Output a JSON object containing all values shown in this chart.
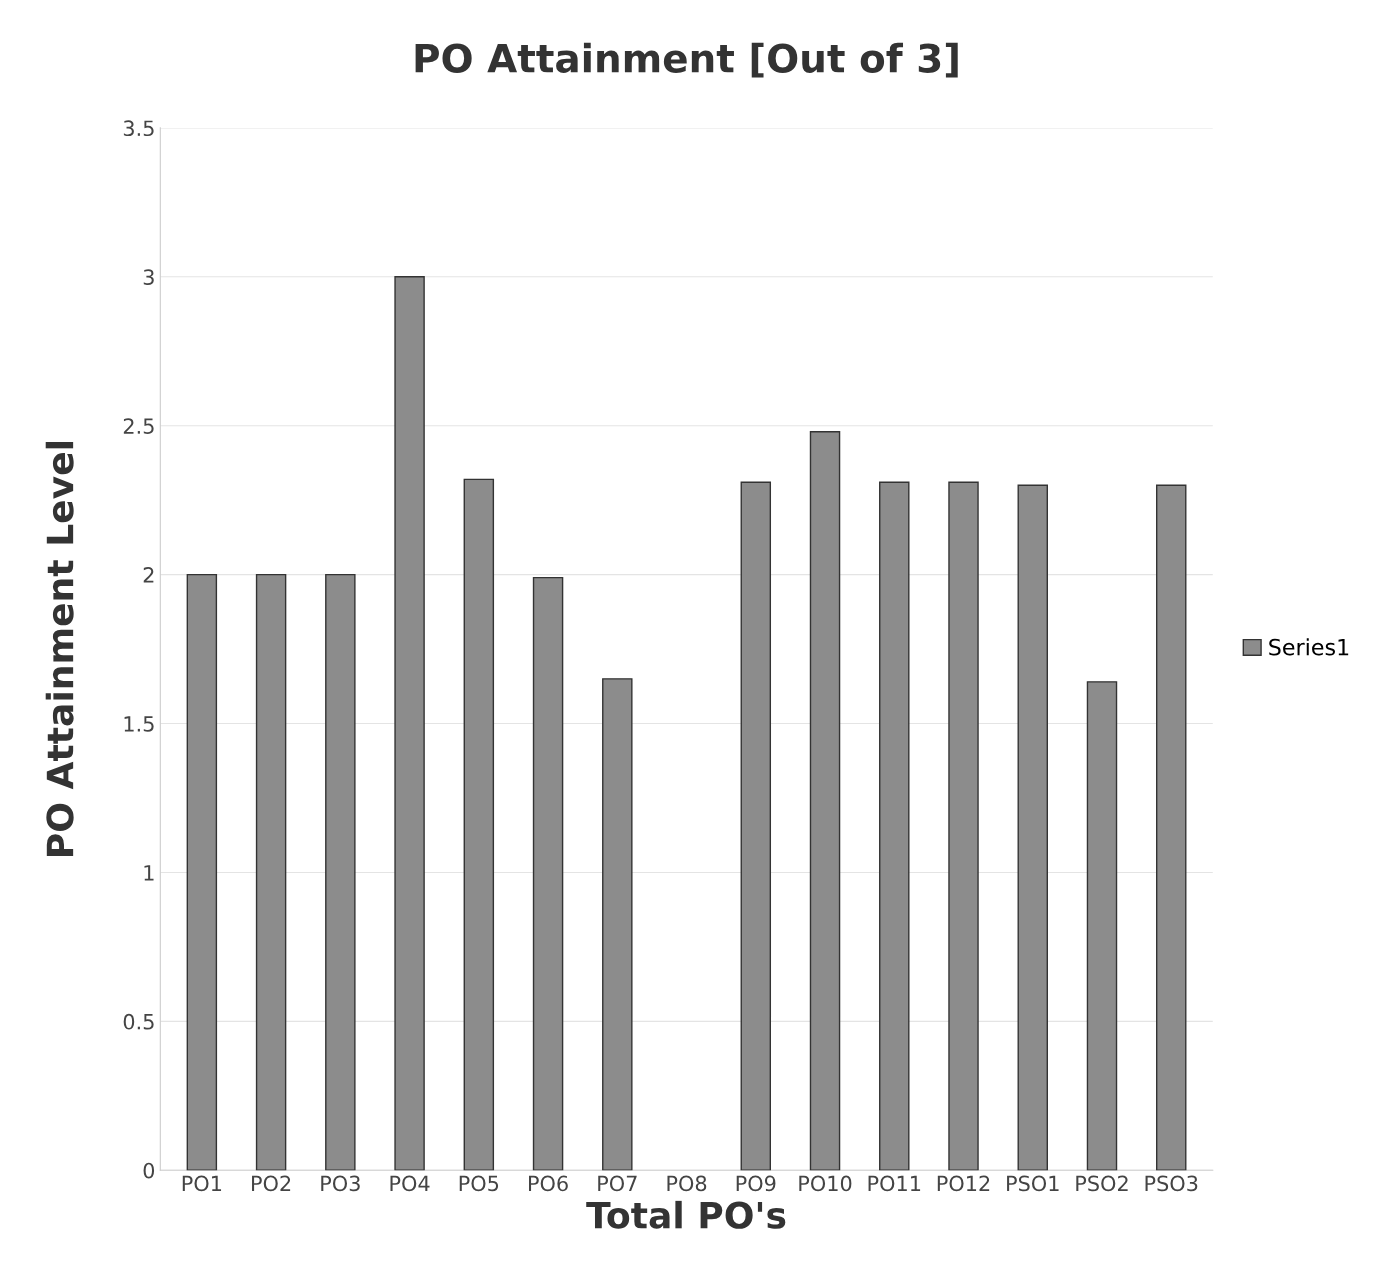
{
  "chart_data": {
    "type": "bar",
    "title": "PO Attainment [Out of 3]",
    "xlabel": "Total PO's",
    "ylabel": "PO Attainment Level",
    "categories": [
      "PO1",
      "PO2",
      "PO3",
      "PO4",
      "PO5",
      "PO6",
      "PO7",
      "PO8",
      "PO9",
      "PO10",
      "PO11",
      "PO12",
      "PSO1",
      "PSO2",
      "PSO3"
    ],
    "series": [
      {
        "name": "Series1",
        "color": "#8c8c8c",
        "values": [
          2.0,
          2.0,
          2.0,
          3.0,
          2.32,
          1.99,
          1.65,
          null,
          2.31,
          2.48,
          2.31,
          2.31,
          2.3,
          1.64,
          2.3
        ]
      }
    ],
    "ylim": [
      0,
      3.5
    ],
    "yticks": [
      0,
      0.5,
      1,
      1.5,
      2,
      2.5,
      3,
      3.5
    ],
    "grid": "y",
    "legend": "right"
  }
}
